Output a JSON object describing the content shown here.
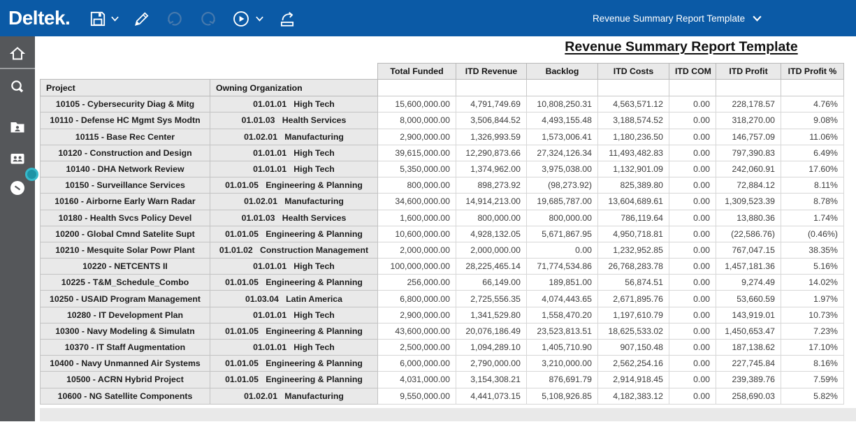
{
  "topbar": {
    "brand": "Deltek.",
    "template_name": "Revenue Summary Report Template",
    "icons": [
      "save-icon",
      "save-dropdown-chevron-icon",
      "edit-pencil-icon",
      "undo-icon",
      "redo-icon",
      "run-icon",
      "run-dropdown-chevron-icon",
      "export-icon",
      "template-dropdown-chevron-icon"
    ],
    "colors": {
      "bar_background": "#0b5aa6",
      "icon": "#ffffff",
      "disabled_icon": "#4679ad"
    }
  },
  "sidebar": {
    "icons": [
      "home-icon",
      "search-icon",
      "employee-folder-icon",
      "people-icon",
      "time-clock-icon",
      "slide-out-handle"
    ],
    "colors": {
      "background": "#55575a",
      "handle_teal": "#36b8ca"
    }
  },
  "report": {
    "title": "Revenue Summary Report Template"
  },
  "table": {
    "left_headers": [
      "Project",
      "Owning Organization"
    ],
    "value_headers": [
      "Total Funded",
      "ITD Revenue",
      "Backlog",
      "ITD Costs",
      "ITD COM",
      "ITD Profit",
      "ITD Profit %"
    ],
    "rows": [
      {
        "project": "10105 - Cybersecurity Diag & Mitg",
        "org": "01.01.01   High Tech",
        "values": [
          "15,600,000.00",
          "4,791,749.69",
          "10,808,250.31",
          "4,563,571.12",
          "0.00",
          "228,178.57",
          "4.76%"
        ]
      },
      {
        "project": "10110 - Defense HC Mgmt Sys Modtn",
        "org": "01.01.03   Health Services",
        "values": [
          "8,000,000.00",
          "3,506,844.52",
          "4,493,155.48",
          "3,188,574.52",
          "0.00",
          "318,270.00",
          "9.08%"
        ]
      },
      {
        "project": "10115 - Base Rec Center",
        "org": "01.02.01   Manufacturing",
        "values": [
          "2,900,000.00",
          "1,326,993.59",
          "1,573,006.41",
          "1,180,236.50",
          "0.00",
          "146,757.09",
          "11.06%"
        ]
      },
      {
        "project": "10120 - Construction and Design",
        "org": "01.01.01   High Tech",
        "values": [
          "39,615,000.00",
          "12,290,873.66",
          "27,324,126.34",
          "11,493,482.83",
          "0.00",
          "797,390.83",
          "6.49%"
        ]
      },
      {
        "project": "10140 - DHA Network Review",
        "org": "01.01.01   High Tech",
        "values": [
          "5,350,000.00",
          "1,374,962.00",
          "3,975,038.00",
          "1,132,901.09",
          "0.00",
          "242,060.91",
          "17.60%"
        ]
      },
      {
        "project": "10150 - Surveillance Services",
        "org": "01.01.05   Engineering & Planning",
        "values": [
          "800,000.00",
          "898,273.92",
          "(98,273.92)",
          "825,389.80",
          "0.00",
          "72,884.12",
          "8.11%"
        ]
      },
      {
        "project": "10160 - Airborne Early Warn Radar",
        "org": "01.02.01   Manufacturing",
        "values": [
          "34,600,000.00",
          "14,914,213.00",
          "19,685,787.00",
          "13,604,689.61",
          "0.00",
          "1,309,523.39",
          "8.78%"
        ]
      },
      {
        "project": "10180 - Health Svcs Policy Devel",
        "org": "01.01.03   Health Services",
        "values": [
          "1,600,000.00",
          "800,000.00",
          "800,000.00",
          "786,119.64",
          "0.00",
          "13,880.36",
          "1.74%"
        ]
      },
      {
        "project": "10200 - Global Cmnd Satelite Supt",
        "org": "01.01.05   Engineering & Planning",
        "values": [
          "10,600,000.00",
          "4,928,132.05",
          "5,671,867.95",
          "4,950,718.81",
          "0.00",
          "(22,586.76)",
          "(0.46%)"
        ]
      },
      {
        "project": "10210 - Mesquite Solar Powr Plant",
        "org": "01.01.02   Construction Management",
        "values": [
          "2,000,000.00",
          "2,000,000.00",
          "0.00",
          "1,232,952.85",
          "0.00",
          "767,047.15",
          "38.35%"
        ]
      },
      {
        "project": "10220 - NETCENTS II",
        "org": "01.01.01   High Tech",
        "values": [
          "100,000,000.00",
          "28,225,465.14",
          "71,774,534.86",
          "26,768,283.78",
          "0.00",
          "1,457,181.36",
          "5.16%"
        ]
      },
      {
        "project": "10225 - T&M_Schedule_Combo",
        "org": "01.01.05   Engineering & Planning",
        "values": [
          "256,000.00",
          "66,149.00",
          "189,851.00",
          "56,874.51",
          "0.00",
          "9,274.49",
          "14.02%"
        ]
      },
      {
        "project": "10250 - USAID Program Management",
        "org": "01.03.04   Latin America",
        "values": [
          "6,800,000.00",
          "2,725,556.35",
          "4,074,443.65",
          "2,671,895.76",
          "0.00",
          "53,660.59",
          "1.97%"
        ]
      },
      {
        "project": "10280 - IT Development Plan",
        "org": "01.01.01   High Tech",
        "values": [
          "2,900,000.00",
          "1,341,529.80",
          "1,558,470.20",
          "1,197,610.79",
          "0.00",
          "143,919.01",
          "10.73%"
        ]
      },
      {
        "project": "10300 - Navy Modeling & Simulatn",
        "org": "01.01.05   Engineering & Planning",
        "values": [
          "43,600,000.00",
          "20,076,186.49",
          "23,523,813.51",
          "18,625,533.02",
          "0.00",
          "1,450,653.47",
          "7.23%"
        ]
      },
      {
        "project": "10370 - IT Staff Augmentation",
        "org": "01.01.01   High Tech",
        "values": [
          "2,500,000.00",
          "1,094,289.10",
          "1,405,710.90",
          "907,150.48",
          "0.00",
          "187,138.62",
          "17.10%"
        ]
      },
      {
        "project": "10400 - Navy Unmanned Air Systems",
        "org": "01.01.05   Engineering & Planning",
        "values": [
          "6,000,000.00",
          "2,790,000.00",
          "3,210,000.00",
          "2,562,254.16",
          "0.00",
          "227,745.84",
          "8.16%"
        ]
      },
      {
        "project": "10500 - ACRN Hybrid Project",
        "org": "01.01.05   Engineering & Planning",
        "values": [
          "4,031,000.00",
          "3,154,308.21",
          "876,691.79",
          "2,914,918.45",
          "0.00",
          "239,389.76",
          "7.59%"
        ]
      },
      {
        "project": "10600 - NG Satellite Components",
        "org": "01.02.01   Manufacturing",
        "values": [
          "9,550,000.00",
          "4,441,073.15",
          "5,108,926.85",
          "4,182,383.12",
          "0.00",
          "258,690.03",
          "5.82%"
        ]
      }
    ]
  }
}
